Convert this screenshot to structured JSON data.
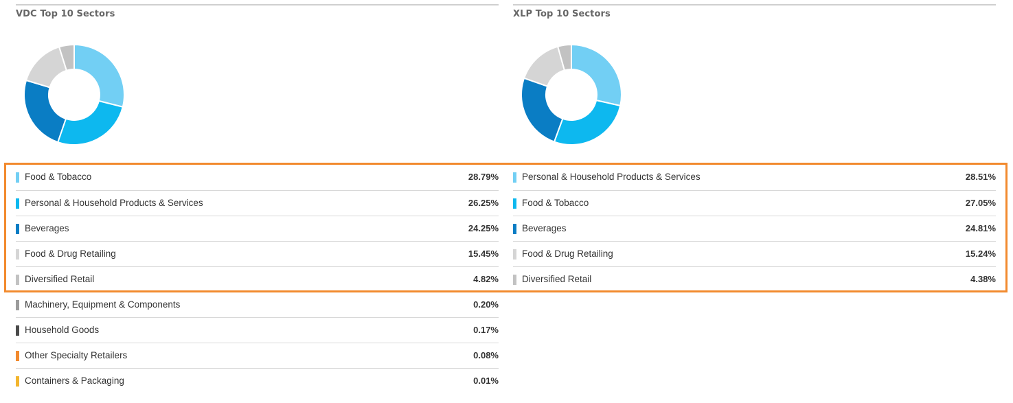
{
  "chart_data": [
    {
      "type": "pie",
      "title": "VDC Top 10 Sectors",
      "donut_shows_top": 5,
      "categories": [
        "Food & Tobacco",
        "Personal & Household Products & Services",
        "Beverages",
        "Food & Drug Retailing",
        "Diversified Retail",
        "Machinery, Equipment & Components",
        "Household Goods",
        "Other Specialty Retailers",
        "Containers & Packaging"
      ],
      "values": [
        28.79,
        26.25,
        24.25,
        15.45,
        4.82,
        0.2,
        0.17,
        0.08,
        0.01
      ],
      "value_labels": [
        "28.79%",
        "26.25%",
        "24.25%",
        "15.45%",
        "4.82%",
        "0.20%",
        "0.17%",
        "0.08%",
        "0.01%"
      ],
      "colors": [
        "#72cff4",
        "#0db8ef",
        "#0a7dc4",
        "#d5d5d5",
        "#c2c2c2",
        "#9b9b9b",
        "#4a4a4a",
        "#f28a2e",
        "#f3b52d"
      ]
    },
    {
      "type": "pie",
      "title": "XLP Top 10 Sectors",
      "donut_shows_top": 5,
      "categories": [
        "Personal & Household Products & Services",
        "Food & Tobacco",
        "Beverages",
        "Food & Drug Retailing",
        "Diversified Retail"
      ],
      "values": [
        28.51,
        27.05,
        24.81,
        15.24,
        4.38
      ],
      "value_labels": [
        "28.51%",
        "27.05%",
        "24.81%",
        "15.24%",
        "4.38%"
      ],
      "colors": [
        "#72cff4",
        "#0db8ef",
        "#0a7dc4",
        "#d5d5d5",
        "#c2c2c2"
      ]
    }
  ],
  "highlight": {
    "color": "#f28a2e",
    "rows_highlighted": 5
  }
}
